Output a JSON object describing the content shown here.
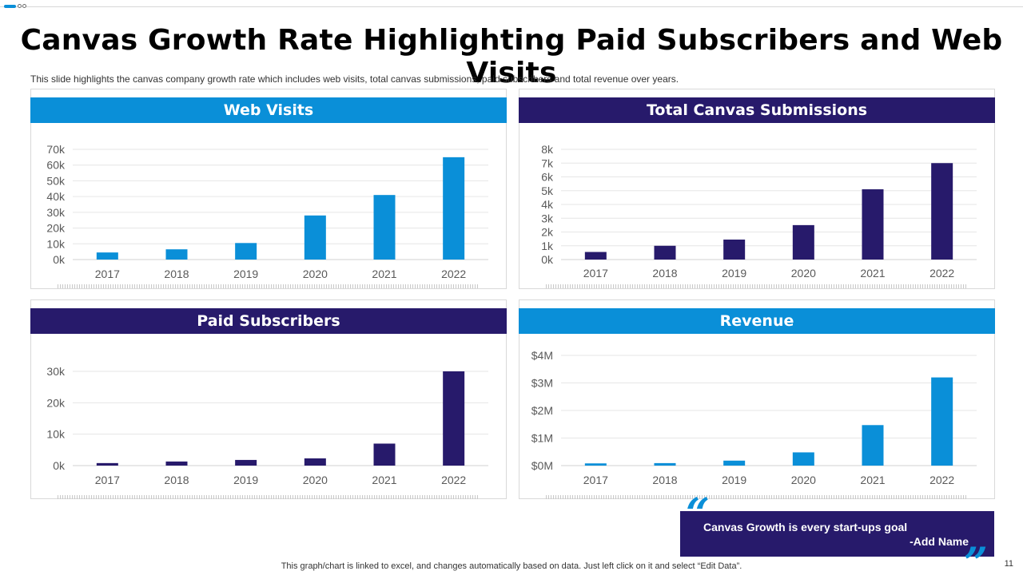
{
  "slide": {
    "title": "Canvas Growth Rate Highlighting Paid Subscribers and Web Visits",
    "subtitle": "This slide highlights the canvas  company growth rate which includes web visits, total canvas  submissions, paid subscribers and total revenue  over years.",
    "quote_text": "Canvas Growth is every start-ups goal",
    "quote_author": "-Add Name",
    "quote_open_mark": "“",
    "quote_close_mark": "”",
    "footer_note": "This graph/chart is linked to excel,  and changes automatically based on data. Just left click on it and select “Edit Data”.",
    "page_number": "11"
  },
  "colors": {
    "light_blue": "#0a8fd8",
    "dark_navy": "#271a6b",
    "grid": "#e6e6e6",
    "axis_text": "#595959"
  },
  "chart_data": [
    {
      "type": "bar",
      "title": "Web Visits",
      "color": "#0a8fd8",
      "categories": [
        "2017",
        "2018",
        "2019",
        "2020",
        "2021",
        "2022"
      ],
      "values": [
        4500,
        6500,
        10500,
        28000,
        41000,
        65000
      ],
      "ylim": [
        0,
        70000
      ],
      "yticks": [
        0,
        10000,
        20000,
        30000,
        40000,
        50000,
        60000,
        70000
      ],
      "ytick_labels": [
        "0k",
        "10k",
        "20k",
        "30k",
        "40k",
        "50k",
        "60k",
        "70k"
      ],
      "xlabel": "",
      "ylabel": ""
    },
    {
      "type": "bar",
      "title": "Total Canvas Submissions",
      "color": "#271a6b",
      "categories": [
        "2017",
        "2018",
        "2019",
        "2020",
        "2021",
        "2022"
      ],
      "values": [
        550,
        1000,
        1450,
        2500,
        5100,
        7000
      ],
      "ylim": [
        0,
        8000
      ],
      "yticks": [
        0,
        1000,
        2000,
        3000,
        4000,
        5000,
        6000,
        7000,
        8000
      ],
      "ytick_labels": [
        "0k",
        "1k",
        "2k",
        "3k",
        "4k",
        "5k",
        "6k",
        "7k",
        "8k"
      ],
      "xlabel": "",
      "ylabel": ""
    },
    {
      "type": "bar",
      "title": "Paid Subscribers",
      "color": "#271a6b",
      "categories": [
        "2017",
        "2018",
        "2019",
        "2020",
        "2021",
        "2022"
      ],
      "values": [
        800,
        1300,
        1800,
        2300,
        7000,
        30000
      ],
      "ylim": [
        0,
        30000
      ],
      "yticks": [
        0,
        10000,
        20000,
        30000
      ],
      "ytick_labels": [
        "0k",
        "10k",
        "20k",
        "30k"
      ],
      "xlabel": "",
      "ylabel": ""
    },
    {
      "type": "bar",
      "title": "Revenue",
      "color": "#0a8fd8",
      "categories": [
        "2017",
        "2018",
        "2019",
        "2020",
        "2021",
        "2022"
      ],
      "values": [
        80000,
        90000,
        180000,
        480000,
        1470000,
        3200000
      ],
      "ylim": [
        0,
        4000000
      ],
      "yticks": [
        0,
        1000000,
        2000000,
        3000000,
        4000000
      ],
      "ytick_labels": [
        "$0M",
        "$1M",
        "$2M",
        "$3M",
        "$4M"
      ],
      "xlabel": "",
      "ylabel": ""
    }
  ]
}
